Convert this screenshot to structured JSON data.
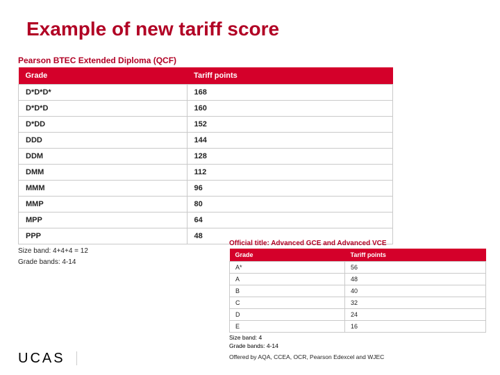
{
  "title": "Example of new tariff score",
  "logo_text": "UCAS",
  "table1": {
    "qualification": "Pearson BTEC Extended Diploma (QCF)",
    "columns": [
      "Grade",
      "Tariff points"
    ],
    "rows": [
      [
        "D*D*D*",
        "168"
      ],
      [
        "D*D*D",
        "160"
      ],
      [
        "D*DD",
        "152"
      ],
      [
        "DDD",
        "144"
      ],
      [
        "DDM",
        "128"
      ],
      [
        "DMM",
        "112"
      ],
      [
        "MMM",
        "96"
      ],
      [
        "MMP",
        "80"
      ],
      [
        "MPP",
        "64"
      ],
      [
        "PPP",
        "48"
      ]
    ],
    "size_band": "Size band: 4+4+4 = 12",
    "grade_bands": "Grade bands: 4-14"
  },
  "table2": {
    "qualification": "Official title: Advanced GCE and Advanced VCE",
    "columns": [
      "Grade",
      "Tariff points"
    ],
    "rows": [
      [
        "A*",
        "56"
      ],
      [
        "A",
        "48"
      ],
      [
        "B",
        "40"
      ],
      [
        "C",
        "32"
      ],
      [
        "D",
        "24"
      ],
      [
        "E",
        "16"
      ]
    ],
    "size_band": "Size band: 4",
    "grade_bands": "Grade bands: 4-14",
    "offered_by": "Offered by AQA, CCEA, OCR, Pearson Edexcel and WJEC"
  },
  "colors": {
    "accent": "#b10024",
    "header_bg": "#d4002a",
    "border": "#c9c9c9",
    "text": "#222222"
  }
}
